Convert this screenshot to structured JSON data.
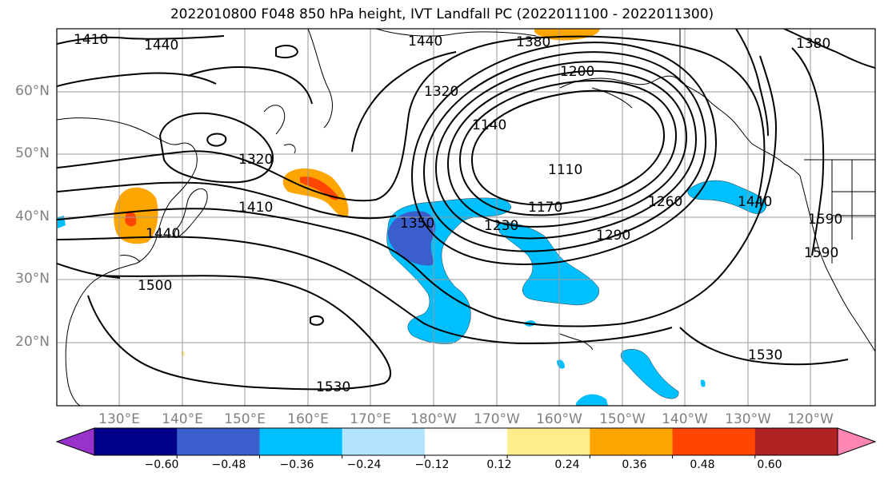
{
  "title": "2022010800 F048 850 hPa height, IVT Landfall PC (2022011100 - 2022011300)",
  "lat_labels": [
    "60°N",
    "50°N",
    "40°N",
    "30°N",
    "20°N"
  ],
  "lon_labels": [
    "130°E",
    "140°E",
    "150°E",
    "160°E",
    "170°E",
    "180°W",
    "170°W",
    "160°W",
    "150°W",
    "140°W",
    "130°W",
    "120°W"
  ],
  "contour_labels": [
    "1410",
    "1440",
    "1440",
    "1380",
    "1380",
    "1320",
    "1200",
    "1140",
    "1110",
    "1320",
    "1410",
    "1170",
    "1230",
    "1350",
    "1260",
    "1290",
    "1440",
    "1590",
    "1590",
    "1440",
    "1500",
    "1530",
    "1530"
  ],
  "colorbar": {
    "colors": [
      "#9932CC",
      "#00008B",
      "#3A5FCD",
      "#00BFFF",
      "#B2E4FF",
      "#FFFFFF",
      "#FFEC8B",
      "#FFA500",
      "#FF4500",
      "#B22222",
      "#FF85B3"
    ],
    "ticks": [
      "−0.60",
      "−0.48",
      "−0.36",
      "−0.24",
      "−0.12",
      "0.12",
      "0.24",
      "0.36",
      "0.48",
      "0.60"
    ]
  }
}
